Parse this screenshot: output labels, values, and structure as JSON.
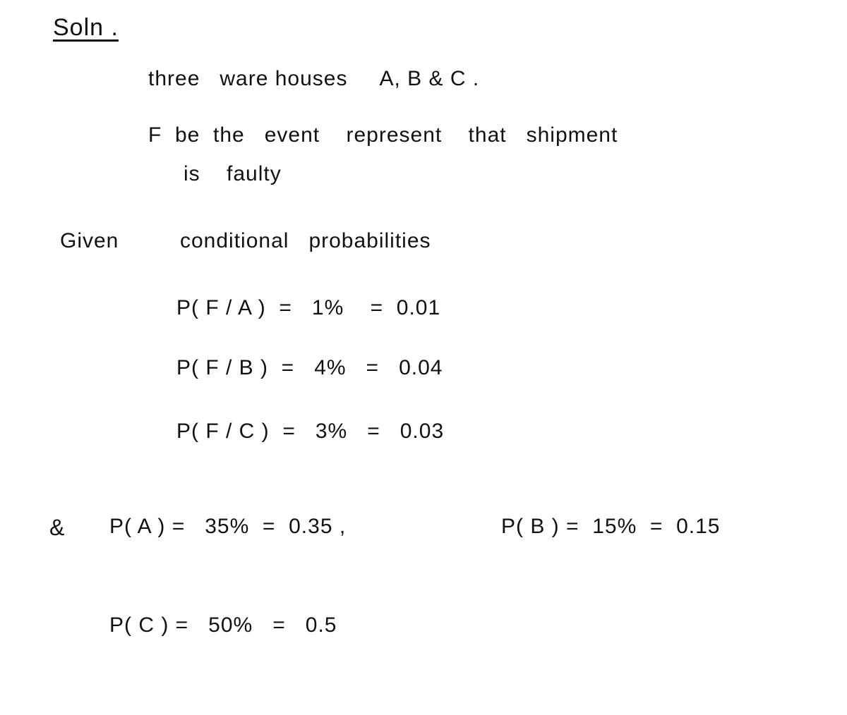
{
  "soln": "Soln .",
  "line_three": "three   ware houses     A, B & C .",
  "line_fbe": "F  be  the   event    represent    that   shipment",
  "line_faulty": "is    faulty",
  "given": "Given",
  "cond": "conditional   probabilities",
  "pfa": "P( F / A )  =   1%    =  0.01",
  "pfb": "P( F / B )  =   4%   =   0.04",
  "pfc": "P( F / C )  =   3%   =   0.03",
  "pa": "P( A ) =   35%  =  0.35 ,",
  "pb": "P( B ) =  15%  =  0.15",
  "pc": "P( C ) =   50%   =   0.5",
  "amp": "&"
}
